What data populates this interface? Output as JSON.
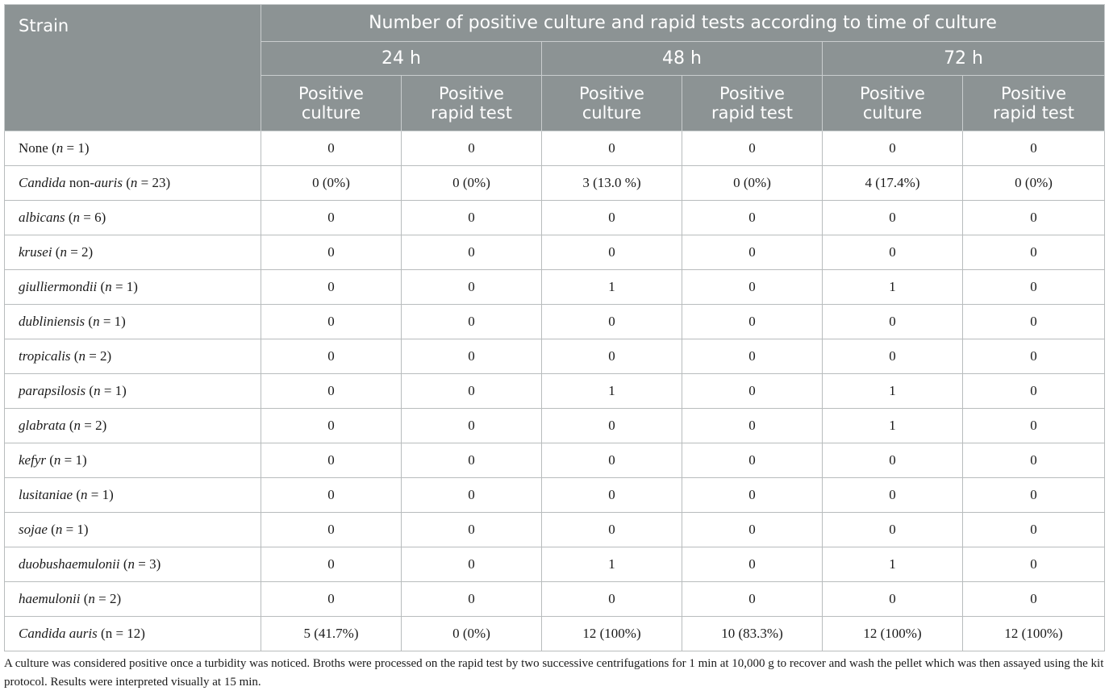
{
  "header": {
    "strain": "Strain",
    "group": "Number of positive culture and rapid tests according to time of culture",
    "times": [
      "24 h",
      "48 h",
      "72 h"
    ],
    "sub_culture": [
      "Positive",
      "culture"
    ],
    "sub_rapid": [
      "Positive",
      "rapid test"
    ]
  },
  "rows": [
    {
      "name_parts": [
        {
          "t": "None (",
          "i": false
        },
        {
          "t": "n",
          "i": true
        },
        {
          "t": " = 1)",
          "i": false
        }
      ],
      "values": [
        "0",
        "0",
        "0",
        "0",
        "0",
        "0"
      ]
    },
    {
      "name_parts": [
        {
          "t": "Candida",
          "i": true
        },
        {
          "t": " non-",
          "i": false
        },
        {
          "t": "auris",
          "i": true
        },
        {
          "t": " (",
          "i": false
        },
        {
          "t": "n",
          "i": true
        },
        {
          "t": " = 23)",
          "i": false
        }
      ],
      "values": [
        "0 (0%)",
        "0 (0%)",
        "3 (13.0 %)",
        "0 (0%)",
        "4 (17.4%)",
        "0 (0%)"
      ]
    },
    {
      "name_parts": [
        {
          "t": "albicans",
          "i": true
        },
        {
          "t": " (",
          "i": false
        },
        {
          "t": "n",
          "i": true
        },
        {
          "t": " = 6)",
          "i": false
        }
      ],
      "values": [
        "0",
        "0",
        "0",
        "0",
        "0",
        "0"
      ]
    },
    {
      "name_parts": [
        {
          "t": "krusei",
          "i": true
        },
        {
          "t": " (",
          "i": false
        },
        {
          "t": "n",
          "i": true
        },
        {
          "t": " = 2)",
          "i": false
        }
      ],
      "values": [
        "0",
        "0",
        "0",
        "0",
        "0",
        "0"
      ]
    },
    {
      "name_parts": [
        {
          "t": "giulliermondii",
          "i": true
        },
        {
          "t": " (",
          "i": false
        },
        {
          "t": "n",
          "i": true
        },
        {
          "t": " = 1)",
          "i": false
        }
      ],
      "values": [
        "0",
        "0",
        "1",
        "0",
        "1",
        "0"
      ]
    },
    {
      "name_parts": [
        {
          "t": "dubliniensis",
          "i": true
        },
        {
          "t": " (",
          "i": false
        },
        {
          "t": "n",
          "i": true
        },
        {
          "t": " = 1)",
          "i": false
        }
      ],
      "values": [
        "0",
        "0",
        "0",
        "0",
        "0",
        "0"
      ]
    },
    {
      "name_parts": [
        {
          "t": "tropicalis",
          "i": true
        },
        {
          "t": " (",
          "i": false
        },
        {
          "t": "n",
          "i": true
        },
        {
          "t": " = 2)",
          "i": false
        }
      ],
      "values": [
        "0",
        "0",
        "0",
        "0",
        "0",
        "0"
      ]
    },
    {
      "name_parts": [
        {
          "t": "parapsilosis",
          "i": true
        },
        {
          "t": " (",
          "i": false
        },
        {
          "t": "n",
          "i": true
        },
        {
          "t": " = 1)",
          "i": false
        }
      ],
      "values": [
        "0",
        "0",
        "1",
        "0",
        "1",
        "0"
      ]
    },
    {
      "name_parts": [
        {
          "t": "glabrata",
          "i": true
        },
        {
          "t": " (",
          "i": false
        },
        {
          "t": "n",
          "i": true
        },
        {
          "t": " = 2)",
          "i": false
        }
      ],
      "values": [
        "0",
        "0",
        "0",
        "0",
        "1",
        "0"
      ]
    },
    {
      "name_parts": [
        {
          "t": "kefyr",
          "i": true
        },
        {
          "t": " (",
          "i": false
        },
        {
          "t": "n",
          "i": true
        },
        {
          "t": " = 1)",
          "i": false
        }
      ],
      "values": [
        "0",
        "0",
        "0",
        "0",
        "0",
        "0"
      ]
    },
    {
      "name_parts": [
        {
          "t": "lusitaniae",
          "i": true
        },
        {
          "t": " (",
          "i": false
        },
        {
          "t": "n",
          "i": true
        },
        {
          "t": " = 1)",
          "i": false
        }
      ],
      "values": [
        "0",
        "0",
        "0",
        "0",
        "0",
        "0"
      ]
    },
    {
      "name_parts": [
        {
          "t": "sojae",
          "i": true
        },
        {
          "t": " (",
          "i": false
        },
        {
          "t": "n",
          "i": true
        },
        {
          "t": " = 1)",
          "i": false
        }
      ],
      "values": [
        "0",
        "0",
        "0",
        "0",
        "0",
        "0"
      ]
    },
    {
      "name_parts": [
        {
          "t": "duobushaemulonii",
          "i": true
        },
        {
          "t": " (",
          "i": false
        },
        {
          "t": "n",
          "i": true
        },
        {
          "t": " = 3)",
          "i": false
        }
      ],
      "values": [
        "0",
        "0",
        "1",
        "0",
        "1",
        "0"
      ]
    },
    {
      "name_parts": [
        {
          "t": "haemulonii",
          "i": true
        },
        {
          "t": " (",
          "i": false
        },
        {
          "t": "n",
          "i": true
        },
        {
          "t": " = 2)",
          "i": false
        }
      ],
      "values": [
        "0",
        "0",
        "0",
        "0",
        "0",
        "0"
      ]
    },
    {
      "name_parts": [
        {
          "t": "Candida auris",
          "i": true
        },
        {
          "t": " (n = 12)",
          "i": false
        }
      ],
      "values": [
        "5 (41.7%)",
        "0 (0%)",
        "12 (100%)",
        "10 (83.3%)",
        "12 (100%)",
        "12 (100%)"
      ]
    }
  ],
  "footnote": "A culture was considered positive once a turbidity was noticed. Broths were processed on the rapid test by two successive centrifugations for 1 min at 10,000 g to recover and wash the pellet which was then assayed using the kit protocol. Results were interpreted visually at 15 min."
}
